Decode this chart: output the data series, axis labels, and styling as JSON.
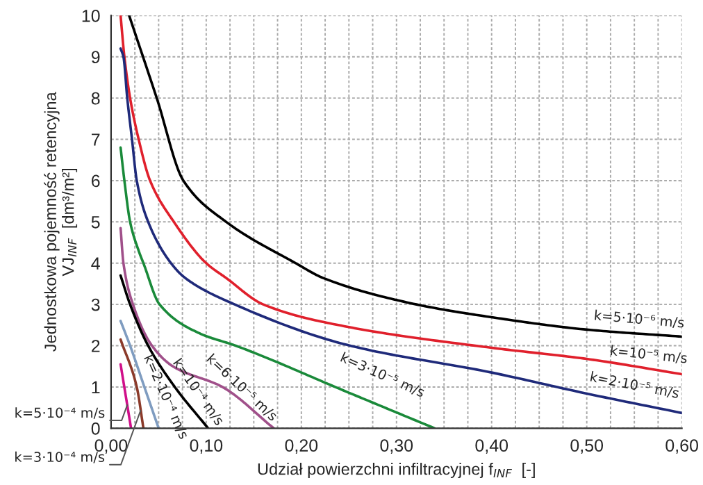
{
  "chart_data": {
    "type": "line",
    "xlabel": "Udział powierzchni infiltracyjnej f$_{INF}$  [-]",
    "ylabel": "Jednostkowa pojemność retencyjna\nVJ$_{INF}$  [dm³/m²]",
    "xlim": [
      0,
      0.6
    ],
    "ylim": [
      0,
      10
    ],
    "xticks": [
      {
        "value": 0,
        "label": "0,00"
      },
      {
        "value": 0.025,
        "label": null
      },
      {
        "value": 0.05,
        "label": null
      },
      {
        "value": 0.075,
        "label": null
      },
      {
        "value": 0.1,
        "label": "0,10"
      },
      {
        "value": 0.125,
        "label": null
      },
      {
        "value": 0.15,
        "label": null
      },
      {
        "value": 0.175,
        "label": null
      },
      {
        "value": 0.2,
        "label": "0,20"
      },
      {
        "value": 0.225,
        "label": null
      },
      {
        "value": 0.25,
        "label": null
      },
      {
        "value": 0.275,
        "label": null
      },
      {
        "value": 0.3,
        "label": "0,30"
      },
      {
        "value": 0.325,
        "label": null
      },
      {
        "value": 0.35,
        "label": null
      },
      {
        "value": 0.375,
        "label": null
      },
      {
        "value": 0.4,
        "label": "0,40"
      },
      {
        "value": 0.425,
        "label": null
      },
      {
        "value": 0.45,
        "label": null
      },
      {
        "value": 0.475,
        "label": null
      },
      {
        "value": 0.5,
        "label": "0,50"
      },
      {
        "value": 0.525,
        "label": null
      },
      {
        "value": 0.55,
        "label": null
      },
      {
        "value": 0.575,
        "label": null
      },
      {
        "value": 0.6,
        "label": "0,60"
      }
    ],
    "yticks": [
      0,
      1,
      2,
      3,
      4,
      5,
      6,
      7,
      8,
      9,
      10
    ],
    "grid": true,
    "legend": false,
    "marker": "none",
    "line_style": "solid",
    "series": [
      {
        "name": "k=5·10⁻⁶ m/s",
        "color": "#000000",
        "x": [
          0.019,
          0.048,
          0.076,
          0.121,
          0.194,
          0.223,
          0.321,
          0.4,
          0.5,
          0.6
        ],
        "values": [
          10,
          8,
          6,
          5,
          4,
          3.64,
          3,
          2.69,
          2.39,
          2.22
        ]
      },
      {
        "name": "k=10⁻⁵ m/s",
        "color": "#e0202c",
        "x": [
          0.01,
          0.014,
          0.02,
          0.029,
          0.041,
          0.066,
          0.1,
          0.121,
          0.16,
          0.248,
          0.4,
          0.5,
          0.6
        ],
        "values": [
          10,
          9,
          8,
          7,
          6,
          5,
          4,
          3.64,
          3,
          2.46,
          1.95,
          1.68,
          1.31
        ]
      },
      {
        "name": "k=2·10⁻⁵ m/s",
        "color": "#1f2a7a",
        "x": [
          0.01,
          0.013,
          0.017,
          0.022,
          0.027,
          0.039,
          0.063,
          0.078,
          0.13,
          0.248,
          0.4,
          0.5,
          0.6
        ],
        "values": [
          9.2,
          9,
          8,
          7,
          6,
          5,
          4,
          3.64,
          3,
          2.02,
          1.35,
          0.84,
          0.37
        ]
      },
      {
        "name": "k=3·10⁻⁵ m/s",
        "color": "#1a8a3a",
        "x": [
          0.01,
          0.014,
          0.02,
          0.029,
          0.034,
          0.051,
          0.093,
          0.131,
          0.248,
          0.34
        ],
        "values": [
          6.8,
          6,
          5,
          4.3,
          4,
          3,
          2.3,
          2,
          0.88,
          0
        ]
      },
      {
        "name": "k=6·10⁻⁵ m/s",
        "color": "#a0508a",
        "x": [
          0.01,
          0.013,
          0.023,
          0.043,
          0.065,
          0.117,
          0.171
        ],
        "values": [
          4.85,
          4,
          3,
          2,
          1.5,
          1,
          0
        ]
      },
      {
        "name": "k=10⁻⁴ m/s",
        "color": "#000000",
        "x": [
          0.01,
          0.02,
          0.039,
          0.067,
          0.102
        ],
        "values": [
          3.7,
          3,
          2,
          1,
          0
        ]
      },
      {
        "name": "k=2·10⁻⁴ m/s",
        "color": "#7f9cc0",
        "x": [
          0.01,
          0.02,
          0.035,
          0.05
        ],
        "values": [
          2.6,
          2,
          1,
          0
        ]
      },
      {
        "name": "k=3·10⁻⁴ m/s",
        "color": "#8b3a2a",
        "x": [
          0.01,
          0.027,
          0.034
        ],
        "values": [
          2.15,
          1,
          0
        ]
      },
      {
        "name": "k=5·10⁻⁴ m/s",
        "color": "#d0108a",
        "x": [
          0.01,
          0.021
        ],
        "values": [
          1.55,
          0
        ]
      }
    ]
  }
}
